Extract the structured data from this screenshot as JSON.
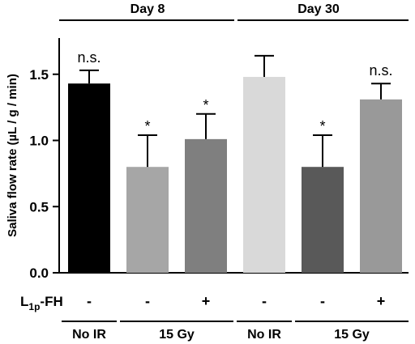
{
  "chart_data": {
    "type": "bar",
    "ylabel": "Saliva flow rate (µL / g / min)",
    "ylim": [
      0,
      1.75
    ],
    "yticks": [
      0.0,
      0.5,
      1.0,
      1.5
    ],
    "ytick_labels": [
      "0.0",
      "0.5",
      "1.0",
      "1.5"
    ],
    "grid": false,
    "periods": [
      "Day 8",
      "Day 30"
    ],
    "bars": [
      {
        "period": "Day 8",
        "value": 1.43,
        "error": 0.1,
        "color": "#000000",
        "annotation": "n.s."
      },
      {
        "period": "Day 8",
        "value": 0.8,
        "error": 0.24,
        "color": "#a6a6a6",
        "annotation": "*"
      },
      {
        "period": "Day 8",
        "value": 1.01,
        "error": 0.19,
        "color": "#7f7f7f",
        "annotation": "*"
      },
      {
        "period": "Day 30",
        "value": 1.48,
        "error": 0.16,
        "color": "#d9d9d9",
        "annotation": ""
      },
      {
        "period": "Day 30",
        "value": 0.8,
        "error": 0.24,
        "color": "#595959",
        "annotation": "*"
      },
      {
        "period": "Day 30",
        "value": 1.31,
        "error": 0.12,
        "color": "#999999",
        "annotation": "n.s."
      }
    ],
    "treatment_row": {
      "label_main": "L",
      "label_sub": "1p",
      "label_rest": "-FH",
      "values": [
        "-",
        "-",
        "+",
        "-",
        "-",
        "+"
      ]
    },
    "condition_groups": [
      {
        "label": "No IR",
        "bars": [
          0
        ]
      },
      {
        "label": "15 Gy",
        "bars": [
          1,
          2
        ]
      },
      {
        "label": "No IR",
        "bars": [
          3
        ]
      },
      {
        "label": "15 Gy",
        "bars": [
          4,
          5
        ]
      }
    ]
  }
}
